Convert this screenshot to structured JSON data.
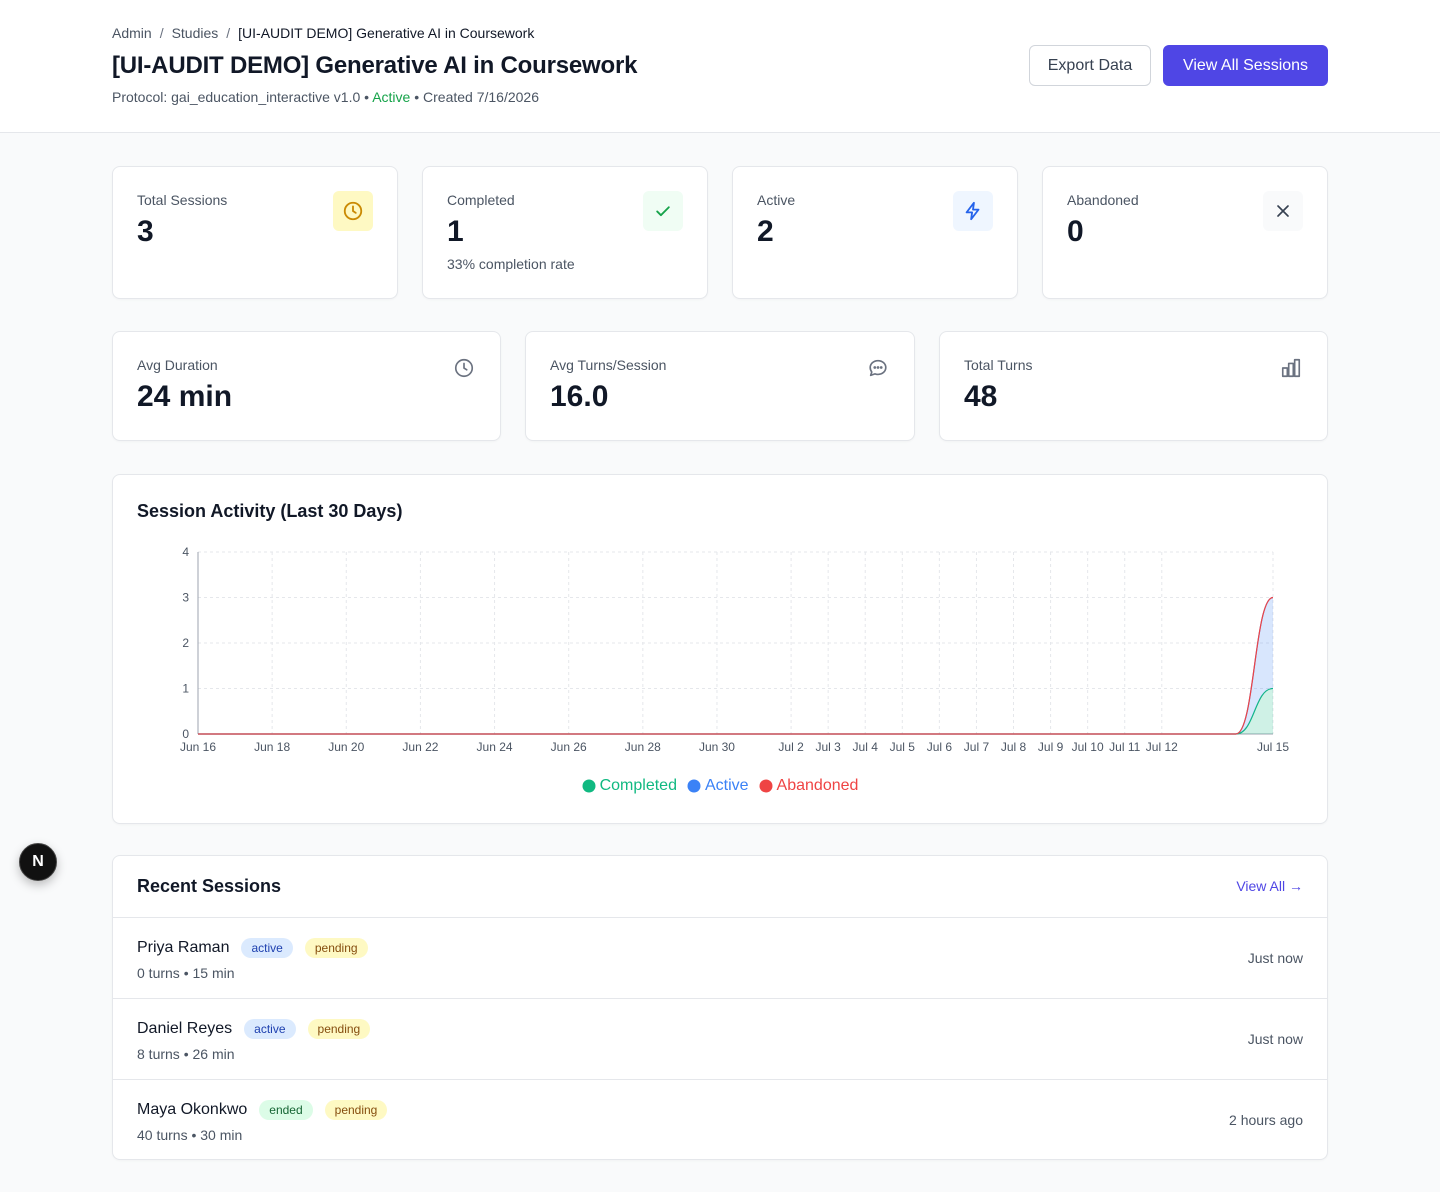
{
  "breadcrumb": {
    "items": [
      "Admin",
      "Studies"
    ],
    "current": "[UI-AUDIT DEMO] Generative AI in Coursework"
  },
  "page": {
    "title": "[UI-AUDIT DEMO] Generative AI in Coursework",
    "protocol": "Protocol: gai_education_interactive v1.0",
    "bullet": "•",
    "status": "Active",
    "created": "Created 7/16/2026"
  },
  "actions": {
    "export_label": "Export Data",
    "view_sessions_label": "View All Sessions"
  },
  "stats_top": [
    {
      "label": "Total Sessions",
      "value": "3",
      "sub": "",
      "icon": "clock-icon",
      "icon_bg": "#fef9c3",
      "icon_color": "#ca8a04"
    },
    {
      "label": "Completed",
      "value": "1",
      "sub": "33% completion rate",
      "icon": "check-icon",
      "icon_bg": "#f0fdf4",
      "icon_color": "#16a34a"
    },
    {
      "label": "Active",
      "value": "2",
      "sub": "",
      "icon": "lightning-icon",
      "icon_bg": "#eff6ff",
      "icon_color": "#2563eb"
    },
    {
      "label": "Abandoned",
      "value": "0",
      "sub": "",
      "icon": "x-icon",
      "icon_bg": "#f9fafb",
      "icon_color": "#374151"
    }
  ],
  "stats_bottom": [
    {
      "label": "Avg Duration",
      "value": "24 min",
      "icon": "clock-outline-icon"
    },
    {
      "label": "Avg Turns/Session",
      "value": "16.0",
      "icon": "chat-bubble-icon"
    },
    {
      "label": "Total Turns",
      "value": "48",
      "icon": "bar-chart-icon"
    }
  ],
  "chart": {
    "title": "Session Activity (Last 30 Days)"
  },
  "chart_data": {
    "type": "area",
    "x": [
      "Jun 16",
      "Jun 17",
      "Jun 18",
      "Jun 19",
      "Jun 20",
      "Jun 21",
      "Jun 22",
      "Jun 23",
      "Jun 24",
      "Jun 25",
      "Jun 26",
      "Jun 27",
      "Jun 28",
      "Jun 29",
      "Jun 30",
      "Jul 1",
      "Jul 2",
      "Jul 3",
      "Jul 4",
      "Jul 5",
      "Jul 6",
      "Jul 7",
      "Jul 8",
      "Jul 9",
      "Jul 10",
      "Jul 11",
      "Jul 12",
      "Jul 13",
      "Jul 14",
      "Jul 15"
    ],
    "tick_labels": [
      {
        "label": "Jun 16",
        "index": 0
      },
      {
        "label": "Jun 18",
        "index": 2
      },
      {
        "label": "Jun 20",
        "index": 4
      },
      {
        "label": "Jun 22",
        "index": 6
      },
      {
        "label": "Jun 24",
        "index": 8
      },
      {
        "label": "Jun 26",
        "index": 10
      },
      {
        "label": "Jun 28",
        "index": 12
      },
      {
        "label": "Jun 30",
        "index": 14
      },
      {
        "label": "Jul 2",
        "index": 16
      },
      {
        "label": "Jul 3",
        "index": 17
      },
      {
        "label": "Jul 4",
        "index": 18
      },
      {
        "label": "Jul 5",
        "index": 19
      },
      {
        "label": "Jul 6",
        "index": 20
      },
      {
        "label": "Jul 7",
        "index": 21
      },
      {
        "label": "Jul 8",
        "index": 22
      },
      {
        "label": "Jul 9",
        "index": 23
      },
      {
        "label": "Jul 10",
        "index": 24
      },
      {
        "label": "Jul 11",
        "index": 25
      },
      {
        "label": "Jul 12",
        "index": 26
      },
      {
        "label": "Jul 15",
        "index": 29
      }
    ],
    "series": [
      {
        "name": "Completed",
        "color": "#10b981",
        "values": [
          0,
          0,
          0,
          0,
          0,
          0,
          0,
          0,
          0,
          0,
          0,
          0,
          0,
          0,
          0,
          0,
          0,
          0,
          0,
          0,
          0,
          0,
          0,
          0,
          0,
          0,
          0,
          0,
          0,
          1
        ]
      },
      {
        "name": "Active",
        "color": "#3b82f6",
        "values": [
          0,
          0,
          0,
          0,
          0,
          0,
          0,
          0,
          0,
          0,
          0,
          0,
          0,
          0,
          0,
          0,
          0,
          0,
          0,
          0,
          0,
          0,
          0,
          0,
          0,
          0,
          0,
          0,
          0,
          2
        ]
      },
      {
        "name": "Abandoned",
        "color": "#ef4444",
        "values": [
          0,
          0,
          0,
          0,
          0,
          0,
          0,
          0,
          0,
          0,
          0,
          0,
          0,
          0,
          0,
          0,
          0,
          0,
          0,
          0,
          0,
          0,
          0,
          0,
          0,
          0,
          0,
          0,
          0,
          0
        ]
      }
    ],
    "stacked": true,
    "ylim": [
      0,
      4
    ],
    "yticks": [
      0,
      1,
      2,
      3,
      4
    ],
    "grid": true,
    "legend": "bottom"
  },
  "recent": {
    "title": "Recent Sessions",
    "view_all": "View All →",
    "sessions": [
      {
        "name": "Priya Raman",
        "status": "active",
        "review": "pending",
        "meta": "0 turns • 15 min",
        "time": "Just now"
      },
      {
        "name": "Daniel Reyes",
        "status": "active",
        "review": "pending",
        "meta": "8 turns • 26 min",
        "time": "Just now"
      },
      {
        "name": "Maya Okonkwo",
        "status": "ended",
        "review": "pending",
        "meta": "40 turns • 30 min",
        "time": "2 hours ago"
      }
    ]
  },
  "dev_badge": {
    "letter": "N"
  }
}
